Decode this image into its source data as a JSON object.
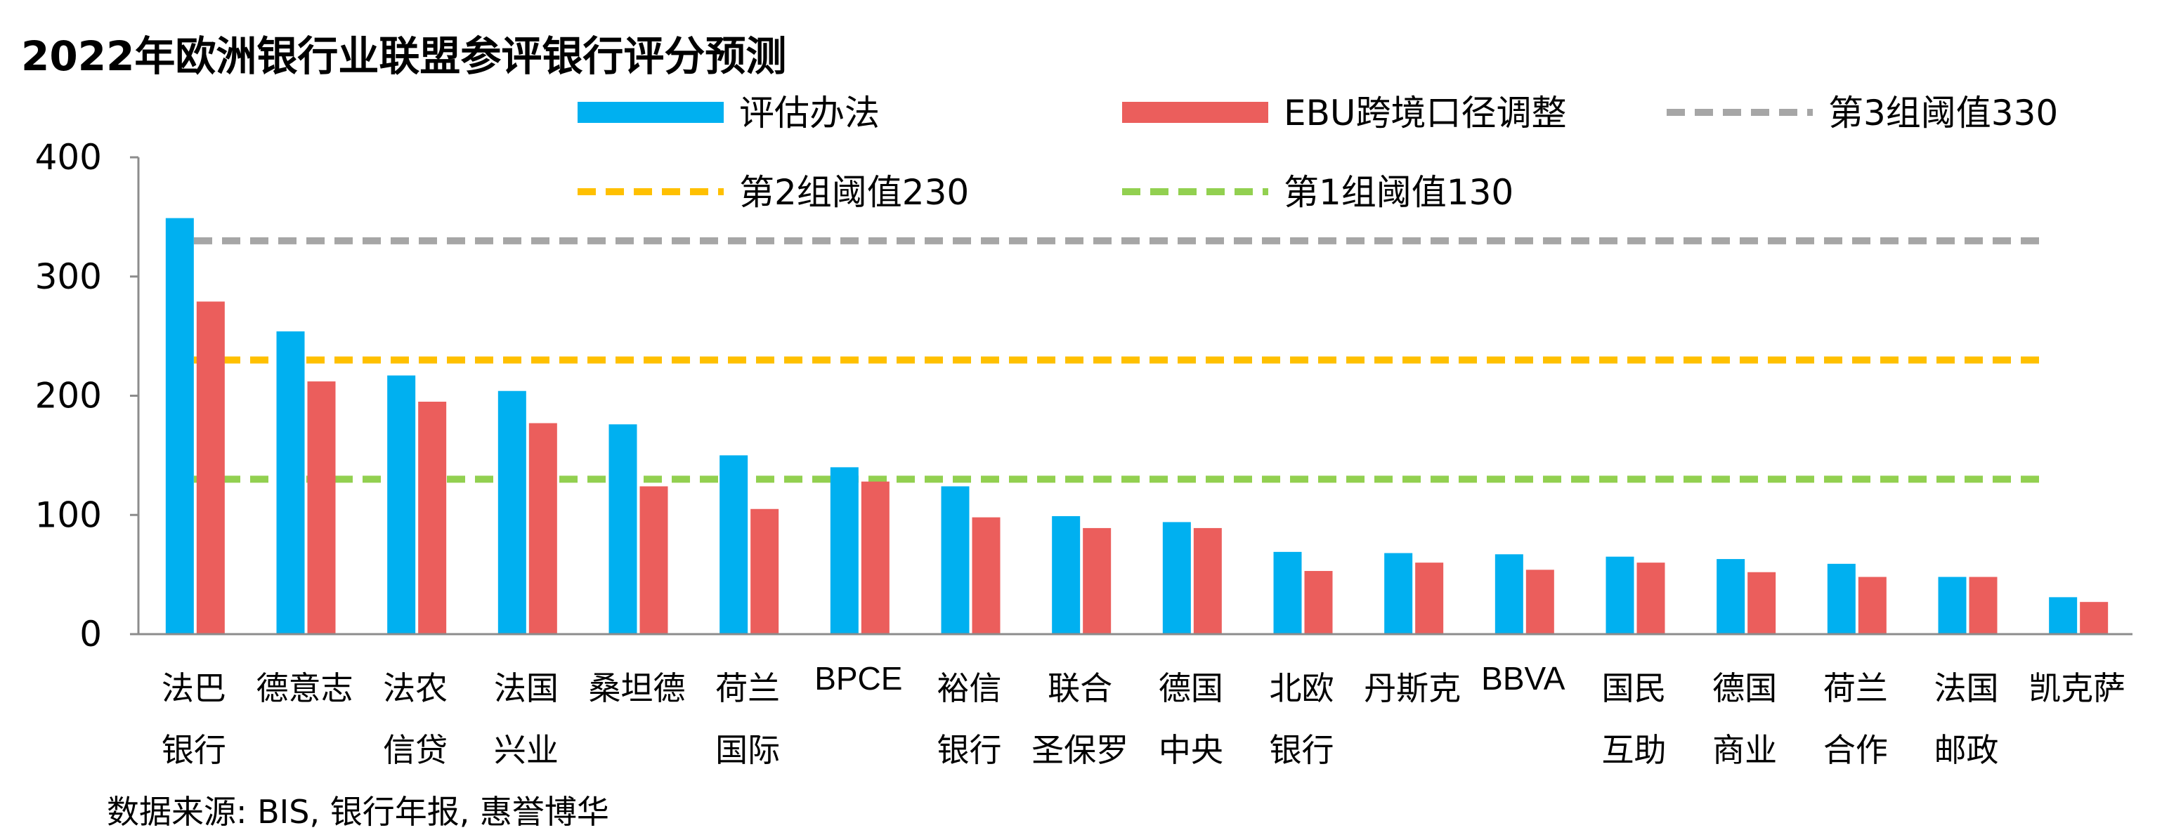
{
  "source": "数据来源: BIS, 银行年报, 惠誉博华",
  "chart_data": {
    "type": "bar",
    "title": "2022年欧洲银行业联盟参评银行评分预测",
    "ylim": [
      0,
      400
    ],
    "yticks": [
      "0",
      "100",
      "200",
      "300",
      "400"
    ],
    "grid": false,
    "legend_position": "top",
    "categories": [
      [
        "法巴",
        "银行"
      ],
      [
        "德意志"
      ],
      [
        "法农",
        "信贷"
      ],
      [
        "法国",
        "兴业"
      ],
      [
        "桑坦德"
      ],
      [
        "荷兰",
        "国际"
      ],
      [
        "BPCE"
      ],
      [
        "裕信",
        "银行"
      ],
      [
        "联合",
        "圣保罗"
      ],
      [
        "德国",
        "中央"
      ],
      [
        "北欧",
        "银行"
      ],
      [
        "丹斯克"
      ],
      [
        "BBVA"
      ],
      [
        "国民",
        "互助"
      ],
      [
        "德国",
        "商业"
      ],
      [
        "荷兰",
        "合作"
      ],
      [
        "法国",
        "邮政"
      ],
      [
        "凯克萨"
      ]
    ],
    "series": [
      {
        "name": "评估办法",
        "color": "#00B0F0",
        "values": [
          349,
          254,
          217,
          204,
          176,
          150,
          140,
          124,
          99,
          94,
          69,
          68,
          67,
          65,
          63,
          59,
          48,
          31
        ]
      },
      {
        "name": "EBU跨境口径调整",
        "color": "#EB5E5C",
        "values": [
          279,
          212,
          195,
          177,
          124,
          105,
          128,
          98,
          89,
          89,
          53,
          60,
          54,
          60,
          52,
          48,
          48,
          27
        ]
      }
    ],
    "thresholds": [
      {
        "name": "第3组阈值330",
        "value": 330,
        "color": "#A6A6A6"
      },
      {
        "name": "第2组阈值230",
        "value": 230,
        "color": "#FFC000"
      },
      {
        "name": "第1组阈值130",
        "value": 130,
        "color": "#92D050"
      }
    ]
  }
}
